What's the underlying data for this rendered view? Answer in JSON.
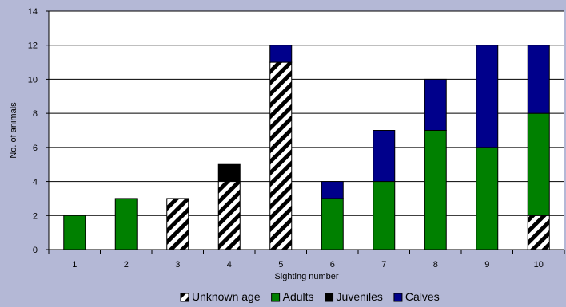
{
  "chart_data": {
    "type": "bar",
    "stacked": true,
    "title": "",
    "xlabel": "Sighting number",
    "ylabel": "No. of animals",
    "categories": [
      "1",
      "2",
      "3",
      "4",
      "5",
      "6",
      "7",
      "8",
      "9",
      "10"
    ],
    "ylim": [
      0,
      14
    ],
    "yticks": [
      "0",
      "2",
      "4",
      "6",
      "8",
      "10",
      "12",
      "14"
    ],
    "grid": "horizontal",
    "legend_position": "bottom",
    "series": [
      {
        "name": "Unknown age",
        "values": [
          0,
          0,
          3,
          4,
          11,
          0,
          0,
          0,
          0,
          2
        ],
        "color": "#ffffff",
        "pattern": "diagonal-stripes"
      },
      {
        "name": "Adults",
        "values": [
          2,
          3,
          0,
          0,
          0,
          3,
          4,
          7,
          6,
          6
        ],
        "color": "#008000"
      },
      {
        "name": "Juveniles",
        "values": [
          0,
          0,
          0,
          1,
          0,
          0,
          0,
          0,
          0,
          0
        ],
        "color": "#000000"
      },
      {
        "name": "Calves",
        "values": [
          0,
          0,
          0,
          0,
          1,
          1,
          3,
          3,
          6,
          4
        ],
        "color": "#00008b"
      }
    ]
  }
}
